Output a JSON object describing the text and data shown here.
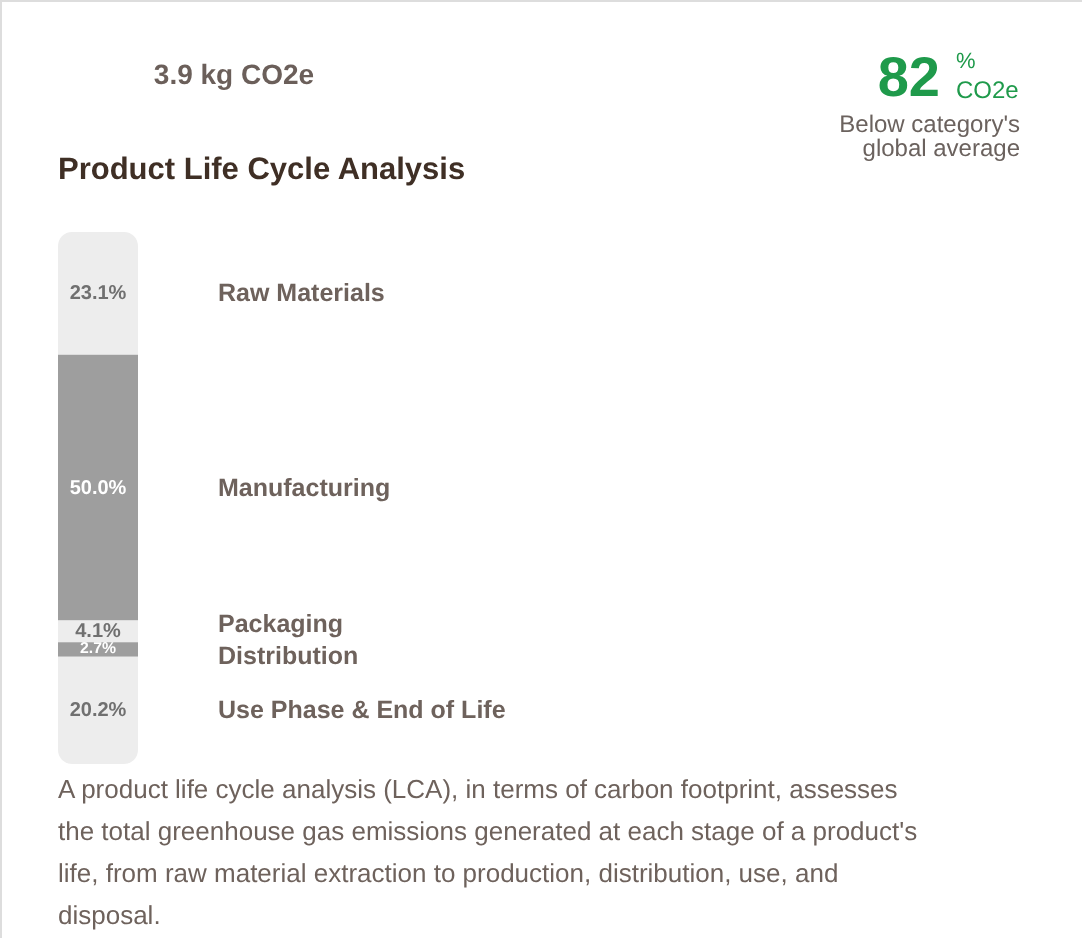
{
  "chart_data": {
    "type": "bar",
    "title": "Product Life Cycle Analysis",
    "stacked": true,
    "categories": [
      null
    ],
    "series": [
      {
        "name": "Raw Materials",
        "color": "#ededed",
        "values": [
          23.1
        ],
        "value_labels": [
          "23.1%"
        ]
      },
      {
        "name": "Manufacturing",
        "color": "#9e9e9e",
        "values": [
          50.0
        ],
        "value_labels": [
          "50.0%"
        ]
      },
      {
        "name": "Packaging",
        "color": "#ededed",
        "values": [
          4.1
        ],
        "value_labels": [
          "4.1%"
        ]
      },
      {
        "name": "Distribution",
        "color": "#9e9e9e",
        "values": [
          2.7
        ],
        "value_labels": [
          "2.7%"
        ]
      },
      {
        "name": "Use Phase & End of Life",
        "color": "#ededed",
        "values": [
          20.2
        ],
        "value_labels": [
          "20.2%"
        ]
      }
    ],
    "annotations": [
      "3.9 kg CO2e",
      "82",
      "%",
      "CO2e",
      "Below category's global average",
      "A product life cycle analysis (LCA), in terms of carbon footprint, assesses the total greenhouse gas emissions generated at each stage of a product's life, from raw material extraction to production, distribution, use, and disposal."
    ]
  }
}
